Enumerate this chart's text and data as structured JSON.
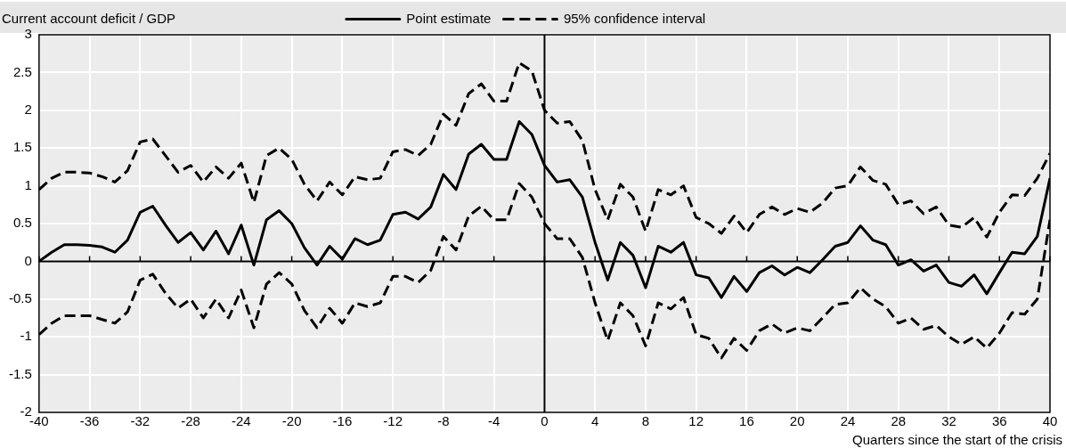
{
  "chart_data": {
    "type": "line",
    "ylabel": "Current account deficit / GDP",
    "xlabel": "Quarters since the start of the crisis",
    "x": [
      -40,
      -39,
      -38,
      -37,
      -36,
      -35,
      -34,
      -33,
      -32,
      -31,
      -30,
      -29,
      -28,
      -27,
      -26,
      -25,
      -24,
      -23,
      -22,
      -21,
      -20,
      -19,
      -18,
      -17,
      -16,
      -15,
      -14,
      -13,
      -12,
      -11,
      -10,
      -9,
      -8,
      -7,
      -6,
      -5,
      -4,
      -3,
      -2,
      -1,
      0,
      1,
      2,
      3,
      4,
      5,
      6,
      7,
      8,
      9,
      10,
      11,
      12,
      13,
      14,
      15,
      16,
      17,
      18,
      19,
      20,
      21,
      22,
      23,
      24,
      25,
      26,
      27,
      28,
      29,
      30,
      31,
      32,
      33,
      34,
      35,
      36,
      37,
      38,
      39,
      40
    ],
    "series": [
      {
        "name": "Point estimate",
        "color": "#000000",
        "line_style": "solid",
        "values": [
          0,
          0.12,
          0.22,
          0.22,
          0.21,
          0.19,
          0.12,
          0.28,
          0.65,
          0.73,
          0.48,
          0.25,
          0.38,
          0.15,
          0.4,
          0.1,
          0.48,
          -0.05,
          0.55,
          0.67,
          0.5,
          0.18,
          -0.05,
          0.2,
          0.03,
          0.3,
          0.22,
          0.28,
          0.62,
          0.65,
          0.56,
          0.72,
          1.15,
          0.95,
          1.42,
          1.55,
          1.35,
          1.35,
          1.85,
          1.68,
          1.27,
          1.05,
          1.08,
          0.85,
          0.25,
          -0.25,
          0.25,
          0.08,
          -0.35,
          0.2,
          0.12,
          0.25,
          -0.18,
          -0.22,
          -0.48,
          -0.2,
          -0.4,
          -0.15,
          -0.06,
          -0.18,
          -0.08,
          -0.15,
          0.02,
          0.2,
          0.25,
          0.47,
          0.28,
          0.22,
          -0.05,
          0.02,
          -0.13,
          -0.05,
          -0.28,
          -0.33,
          -0.18,
          -0.43,
          -0.15,
          0.12,
          0.1,
          0.33,
          1.1
        ]
      },
      {
        "name": "95% confidence interval",
        "color": "#000000",
        "line_style": "dashed",
        "values": [
          0.95,
          1.1,
          1.18,
          1.18,
          1.17,
          1.12,
          1.05,
          1.2,
          1.58,
          1.62,
          1.4,
          1.18,
          1.27,
          1.05,
          1.25,
          1.1,
          1.3,
          0.78,
          1.4,
          1.5,
          1.35,
          1.02,
          0.8,
          1.05,
          0.88,
          1.12,
          1.08,
          1.1,
          1.45,
          1.48,
          1.4,
          1.55,
          1.95,
          1.8,
          2.22,
          2.35,
          2.12,
          2.12,
          2.63,
          2.52,
          2.0,
          1.83,
          1.85,
          1.6,
          0.95,
          0.55,
          1.02,
          0.85,
          0.4,
          0.95,
          0.88,
          1.0,
          0.58,
          0.5,
          0.37,
          0.6,
          0.38,
          0.62,
          0.72,
          0.62,
          0.7,
          0.65,
          0.77,
          0.97,
          1.0,
          1.25,
          1.07,
          1.02,
          0.75,
          0.8,
          0.63,
          0.72,
          0.48,
          0.45,
          0.58,
          0.32,
          0.65,
          0.88,
          0.87,
          1.1,
          1.43
        ]
      },
      {
        "color": "#000000",
        "line_style": "dashed",
        "values": [
          -0.97,
          -0.82,
          -0.72,
          -0.72,
          -0.72,
          -0.77,
          -0.82,
          -0.67,
          -0.25,
          -0.17,
          -0.42,
          -0.62,
          -0.5,
          -0.75,
          -0.5,
          -0.75,
          -0.38,
          -0.88,
          -0.3,
          -0.15,
          -0.3,
          -0.65,
          -0.88,
          -0.62,
          -0.82,
          -0.55,
          -0.6,
          -0.55,
          -0.2,
          -0.2,
          -0.28,
          -0.12,
          0.33,
          0.15,
          0.6,
          0.73,
          0.55,
          0.55,
          1.03,
          0.85,
          0.5,
          0.3,
          0.3,
          0.05,
          -0.55,
          -1.05,
          -0.55,
          -0.72,
          -1.12,
          -0.55,
          -0.63,
          -0.48,
          -0.97,
          -1.02,
          -1.28,
          -1.02,
          -1.18,
          -0.92,
          -0.83,
          -0.95,
          -0.88,
          -0.92,
          -0.75,
          -0.57,
          -0.55,
          -0.35,
          -0.5,
          -0.6,
          -0.82,
          -0.75,
          -0.9,
          -0.85,
          -1.0,
          -1.1,
          -1.0,
          -1.15,
          -0.95,
          -0.68,
          -0.7,
          -0.5,
          0.55
        ]
      }
    ],
    "xlim": [
      -40,
      40
    ],
    "xticks": [
      -40,
      -36,
      -32,
      -28,
      -24,
      -20,
      -16,
      -12,
      -8,
      -4,
      0,
      4,
      8,
      12,
      16,
      20,
      24,
      28,
      32,
      36,
      40
    ],
    "ylim": [
      -2,
      3
    ],
    "yticks": [
      -2,
      -1.5,
      -1,
      -0.5,
      0,
      0.5,
      1,
      1.5,
      2,
      2.5,
      3
    ],
    "grid": true,
    "legend": "top",
    "marker": "none"
  }
}
